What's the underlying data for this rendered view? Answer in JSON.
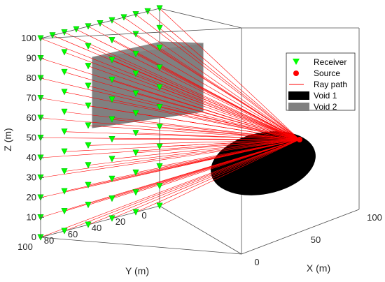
{
  "chart_data": {
    "type": "scatter3d",
    "xlabel": "X (m)",
    "ylabel": "Y (m)",
    "zlabel": "Z (m)",
    "x_ticks": [
      "0",
      "50",
      "100"
    ],
    "y_ticks": [
      "100",
      "80",
      "60",
      "40",
      "20",
      "0"
    ],
    "z_ticks": [
      "0",
      "10",
      "20",
      "30",
      "40",
      "50",
      "60",
      "70",
      "80",
      "90",
      "100"
    ],
    "xlim": [
      0,
      100
    ],
    "ylim": [
      0,
      100
    ],
    "zlim": [
      0,
      100
    ],
    "receivers": {
      "x": 0,
      "y_values": [
        0,
        10,
        20,
        30,
        40,
        50,
        60,
        70,
        80,
        90,
        100
      ],
      "z_values": [
        0,
        10,
        20,
        30,
        40,
        50,
        60,
        70,
        80,
        90,
        100
      ],
      "y_top_row": [
        0,
        20,
        40,
        60,
        80,
        100
      ]
    },
    "source": {
      "x": 100,
      "y": 0,
      "z": 50
    },
    "void_1": {
      "shape": "ellipsoid",
      "color": "#000000"
    },
    "void_2": {
      "shape": "box",
      "color": "#808080"
    },
    "legend": {
      "position": "top-right",
      "entries": [
        {
          "label": "Receiver",
          "marker": "triangle-down",
          "color": "#00ff00"
        },
        {
          "label": "Source",
          "marker": "circle",
          "color": "#ff0000"
        },
        {
          "label": "Ray path",
          "marker": "line",
          "color": "#ff0000"
        },
        {
          "label": "Void 1",
          "marker": "filled-box",
          "color": "#000000"
        },
        {
          "label": "Void 2",
          "marker": "filled-box",
          "color": "#808080"
        }
      ]
    }
  }
}
